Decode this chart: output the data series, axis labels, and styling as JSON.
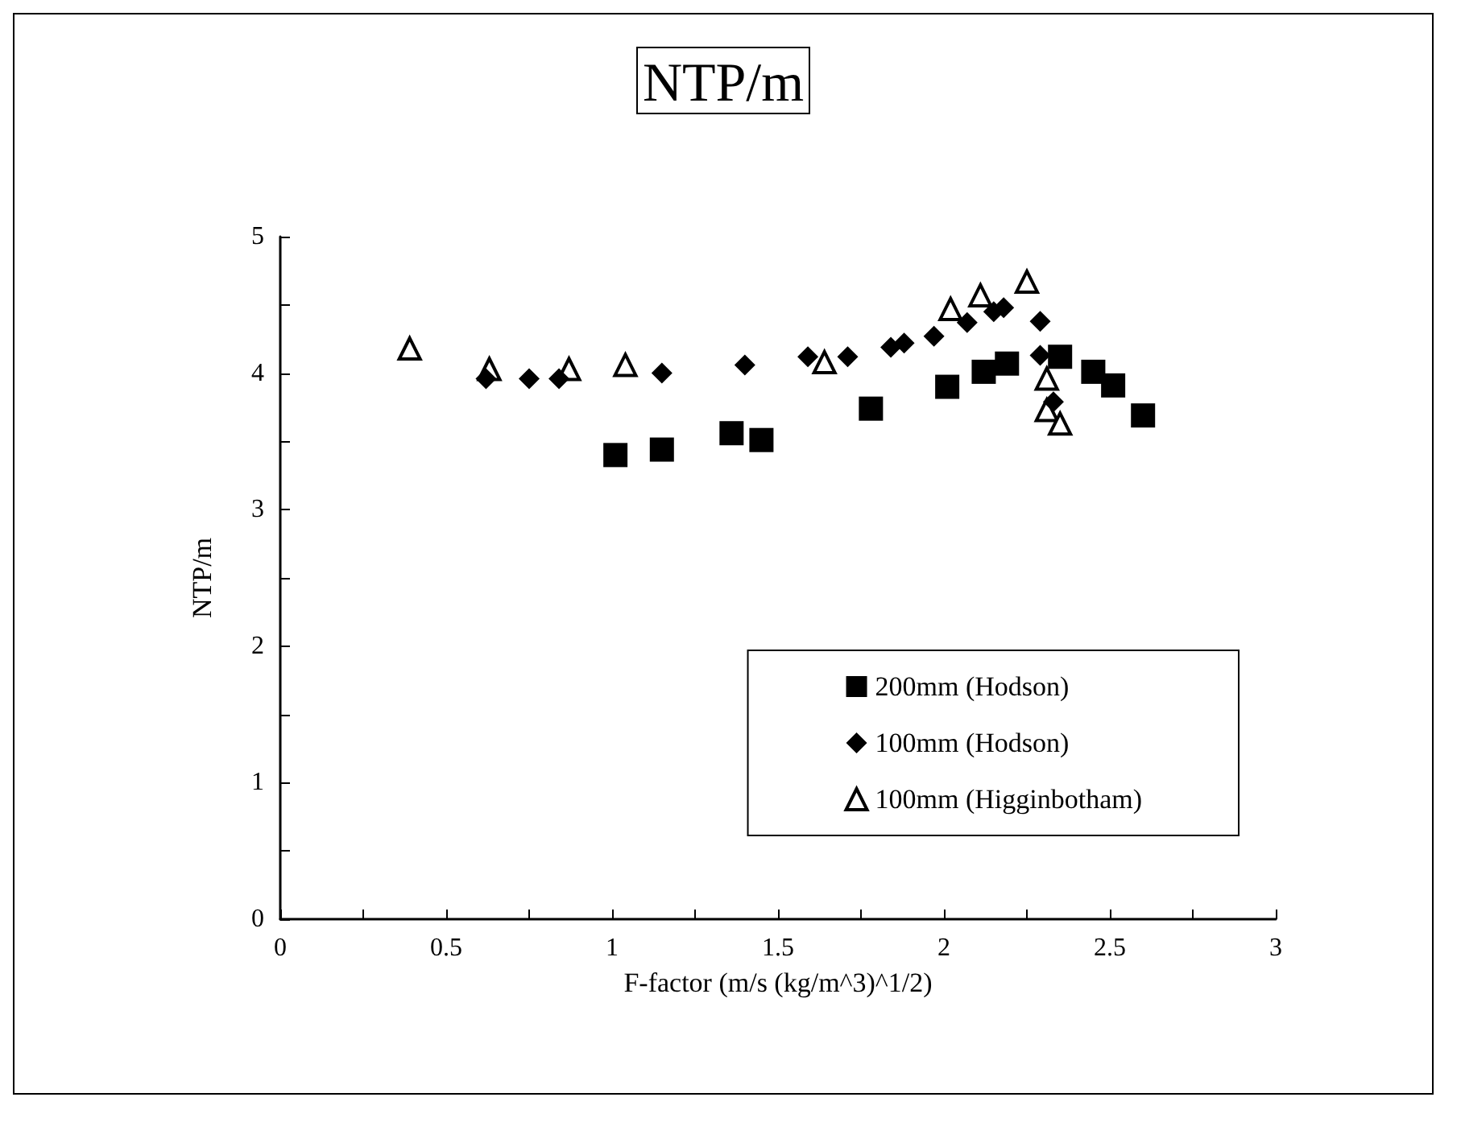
{
  "chart_data": {
    "type": "scatter",
    "title": "NTP/m",
    "xlabel": "F-factor (m/s (kg/m^3)^1/2)",
    "ylabel": "NTP/m",
    "xlim": [
      0,
      3
    ],
    "ylim": [
      0,
      5
    ],
    "xticks": [
      0,
      {
        "value": 0.25,
        "label": null
      },
      0.5,
      {
        "value": 0.75,
        "label": null
      },
      1,
      {
        "value": 1.25,
        "label": null
      },
      1.5,
      {
        "value": 1.75,
        "label": null
      },
      2,
      {
        "value": 2.25,
        "label": null
      },
      2.5,
      {
        "value": 2.75,
        "label": null
      },
      3
    ],
    "yticks": [
      0,
      {
        "value": 0.5,
        "label": null
      },
      1,
      {
        "value": 1.5,
        "label": null
      },
      2,
      {
        "value": 2.5,
        "label": null
      },
      3,
      {
        "value": 3.5,
        "label": null
      },
      4,
      {
        "value": 4.5,
        "label": null
      },
      5
    ],
    "grid": false,
    "legend": "bottom right",
    "series": [
      {
        "name": "200mm (Hodson)",
        "color": "#000000",
        "marker": "square",
        "x": [
          1.01,
          1.15,
          1.36,
          1.45,
          1.78,
          2.01,
          2.12,
          2.19,
          2.35,
          2.45,
          2.51,
          2.6
        ],
        "values": [
          3.4,
          3.44,
          3.56,
          3.51,
          3.74,
          3.9,
          4.01,
          4.07,
          4.12,
          4.01,
          3.91,
          3.69
        ]
      },
      {
        "name": "100mm (Hodson)",
        "color": "#000000",
        "marker": "diamond",
        "x": [
          0.62,
          0.75,
          0.84,
          1.15,
          1.4,
          1.59,
          1.71,
          1.84,
          1.88,
          1.97,
          2.07,
          2.15,
          2.18,
          2.29,
          2.29,
          2.33
        ],
        "values": [
          3.96,
          3.96,
          3.96,
          4.0,
          4.06,
          4.12,
          4.12,
          4.19,
          4.22,
          4.27,
          4.37,
          4.45,
          4.48,
          4.38,
          4.13,
          3.79
        ]
      },
      {
        "name": "100mm (Higginbotham)",
        "color": "#000000",
        "marker": "triangle",
        "x": [
          0.39,
          0.63,
          0.87,
          1.04,
          1.64,
          2.02,
          2.11,
          2.25,
          2.31,
          2.31,
          2.35
        ],
        "values": [
          4.18,
          4.03,
          4.03,
          4.06,
          4.08,
          4.47,
          4.57,
          4.67,
          3.96,
          3.73,
          3.63
        ]
      }
    ]
  }
}
